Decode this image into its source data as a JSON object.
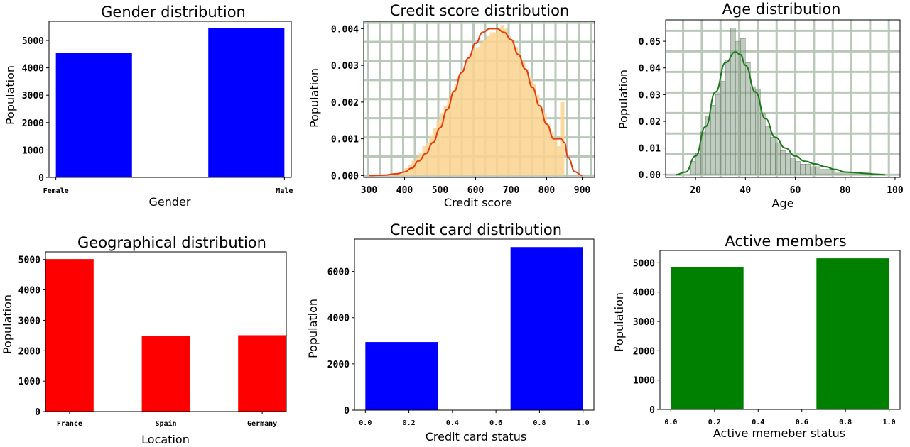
{
  "chart_data": [
    {
      "id": "gender",
      "type": "bar",
      "title": "Gender distribution",
      "xlabel": "Gender",
      "ylabel": "Population",
      "categories": [
        "Female",
        "Male"
      ],
      "values": [
        4543,
        5457
      ],
      "ylim": [
        0,
        5700
      ],
      "yticks": [
        0,
        1000,
        2000,
        3000,
        4000,
        5000
      ],
      "color": "#0000ff",
      "grid": false
    },
    {
      "id": "credit_score",
      "type": "area",
      "title": "Credit score distribution",
      "xlabel": "Credit score",
      "ylabel": "Population",
      "xlim": [
        285,
        935
      ],
      "ylim": [
        -5e-05,
        0.0042
      ],
      "xticks": [
        300,
        400,
        500,
        600,
        700,
        800,
        900
      ],
      "yticks": [
        0.0,
        0.001,
        0.002,
        0.003,
        0.004
      ],
      "ytick_labels": [
        "0.000",
        "0.001",
        "0.002",
        "0.003",
        "0.004"
      ],
      "histogram": {
        "bin_edges": [
          350,
          360,
          370,
          380,
          390,
          400,
          410,
          420,
          430,
          440,
          450,
          460,
          470,
          480,
          490,
          500,
          510,
          520,
          530,
          540,
          550,
          560,
          570,
          580,
          590,
          600,
          610,
          620,
          630,
          640,
          650,
          660,
          670,
          680,
          690,
          700,
          710,
          720,
          730,
          740,
          750,
          760,
          770,
          780,
          790,
          800,
          810,
          820,
          830,
          840,
          850
        ],
        "density": [
          2e-05,
          4e-05,
          6e-05,
          8e-05,
          0.0001,
          0.0002,
          0.0003,
          0.0004,
          0.0005,
          0.0006,
          0.0008,
          0.0009,
          0.0011,
          0.0013,
          0.0015,
          0.0017,
          0.0019,
          0.0021,
          0.0023,
          0.0025,
          0.0027,
          0.0029,
          0.0031,
          0.0033,
          0.0034,
          0.0035,
          0.0036,
          0.0037,
          0.0038,
          0.0039,
          0.0039,
          0.004,
          0.0041,
          0.004,
          0.0038,
          0.0037,
          0.0035,
          0.0033,
          0.0031,
          0.0029,
          0.0027,
          0.0025,
          0.0022,
          0.0019,
          0.0017,
          0.0014,
          0.0012,
          0.001,
          0.0008,
          0.002
        ]
      },
      "kde": {
        "x": [
          300,
          340,
          380,
          400,
          420,
          440,
          460,
          480,
          500,
          520,
          540,
          560,
          580,
          600,
          620,
          640,
          660,
          680,
          700,
          720,
          740,
          760,
          780,
          800,
          820,
          840,
          850,
          860,
          880,
          900
        ],
        "y": [
          0.0,
          1e-05,
          5e-05,
          0.0001,
          0.0002,
          0.0004,
          0.0006,
          0.0009,
          0.0013,
          0.0018,
          0.0023,
          0.0028,
          0.0032,
          0.0036,
          0.0039,
          0.004,
          0.004,
          0.0039,
          0.0037,
          0.0033,
          0.0029,
          0.0024,
          0.0019,
          0.0014,
          0.001,
          0.001,
          0.0009,
          0.0005,
          0.0001,
          0.0
        ]
      },
      "hist_color": "#fcd48e",
      "kde_color": "#e83a0c",
      "grid": true,
      "grid_color": "#b9c8b9"
    },
    {
      "id": "age",
      "type": "area",
      "title": "Age distribution",
      "xlabel": "Age",
      "ylabel": "Population",
      "xlim": [
        8,
        102
      ],
      "ylim": [
        -0.001,
        0.058
      ],
      "xticks": [
        20,
        40,
        60,
        80,
        100
      ],
      "yticks": [
        0.0,
        0.01,
        0.02,
        0.03,
        0.04,
        0.05
      ],
      "ytick_labels": [
        "0.00",
        "0.01",
        "0.02",
        "0.03",
        "0.04",
        "0.05"
      ],
      "histogram": {
        "bin_edges": [
          18,
          20,
          22,
          24,
          26,
          28,
          30,
          32,
          34,
          36,
          38,
          40,
          42,
          44,
          46,
          48,
          50,
          52,
          54,
          56,
          58,
          60,
          62,
          64,
          66,
          68,
          70,
          72,
          74,
          76,
          78,
          80,
          82,
          84,
          86,
          88,
          90,
          92
        ],
        "density": [
          0.005,
          0.008,
          0.016,
          0.022,
          0.026,
          0.03,
          0.035,
          0.043,
          0.055,
          0.05,
          0.051,
          0.042,
          0.033,
          0.032,
          0.023,
          0.018,
          0.014,
          0.012,
          0.009,
          0.008,
          0.006,
          0.005,
          0.004,
          0.004,
          0.003,
          0.003,
          0.002,
          0.002,
          0.002,
          0.001,
          0.001,
          0.001,
          0.001,
          0.0005,
          0.0005,
          0.0005,
          0.0003
        ]
      },
      "kde": {
        "x": [
          12,
          16,
          20,
          24,
          28,
          32,
          36,
          38,
          40,
          44,
          48,
          52,
          56,
          60,
          64,
          68,
          72,
          76,
          80,
          84,
          88,
          92,
          96
        ],
        "y": [
          0.0,
          0.001,
          0.007,
          0.018,
          0.031,
          0.042,
          0.046,
          0.045,
          0.041,
          0.031,
          0.021,
          0.014,
          0.01,
          0.007,
          0.005,
          0.004,
          0.003,
          0.002,
          0.001,
          0.0008,
          0.0005,
          0.0002,
          0.0
        ]
      },
      "hist_color": "#8aa28a",
      "kde_color": "#1a7a1a",
      "grid": true,
      "grid_color": "#b9c8b9"
    },
    {
      "id": "geography",
      "type": "bar",
      "title": "Geographical distribution",
      "xlabel": "Location",
      "ylabel": "Population",
      "categories": [
        "France",
        "Spain",
        "Germany"
      ],
      "values": [
        5014,
        2477,
        2509
      ],
      "ylim": [
        0,
        5250
      ],
      "yticks": [
        0,
        1000,
        2000,
        3000,
        4000,
        5000
      ],
      "color": "#ff0000",
      "grid": false
    },
    {
      "id": "credit_card",
      "type": "bar",
      "title": "Credit card distribution",
      "xlabel": "Credit card status",
      "ylabel": "Population",
      "bars": [
        {
          "x0": 0.0,
          "x1": 0.333,
          "value": 2945
        },
        {
          "x0": 0.667,
          "x1": 1.0,
          "value": 7055
        }
      ],
      "xlim": [
        -0.05,
        1.05
      ],
      "ylim": [
        0,
        7400
      ],
      "xticks": [
        0.0,
        0.2,
        0.4,
        0.6,
        0.8,
        1.0
      ],
      "xtick_labels": [
        "0.0",
        "0.2",
        "0.4",
        "0.6",
        "0.8",
        "1.0"
      ],
      "yticks": [
        0,
        2000,
        4000,
        6000
      ],
      "color": "#0000ff",
      "grid": false
    },
    {
      "id": "active",
      "type": "bar",
      "title": "Active members",
      "xlabel": "Active memeber status",
      "ylabel": "Population",
      "bars": [
        {
          "x0": 0.0,
          "x1": 0.333,
          "value": 4849
        },
        {
          "x0": 0.667,
          "x1": 1.0,
          "value": 5151
        }
      ],
      "xlim": [
        -0.05,
        1.05
      ],
      "ylim": [
        0,
        5420
      ],
      "xticks": [
        0.0,
        0.2,
        0.4,
        0.6,
        0.8,
        1.0
      ],
      "xtick_labels": [
        "0.0",
        "0.2",
        "0.4",
        "0.6",
        "0.8",
        "1.0"
      ],
      "yticks": [
        0,
        1000,
        2000,
        3000,
        4000,
        5000
      ],
      "color": "#008000",
      "grid": false
    }
  ]
}
